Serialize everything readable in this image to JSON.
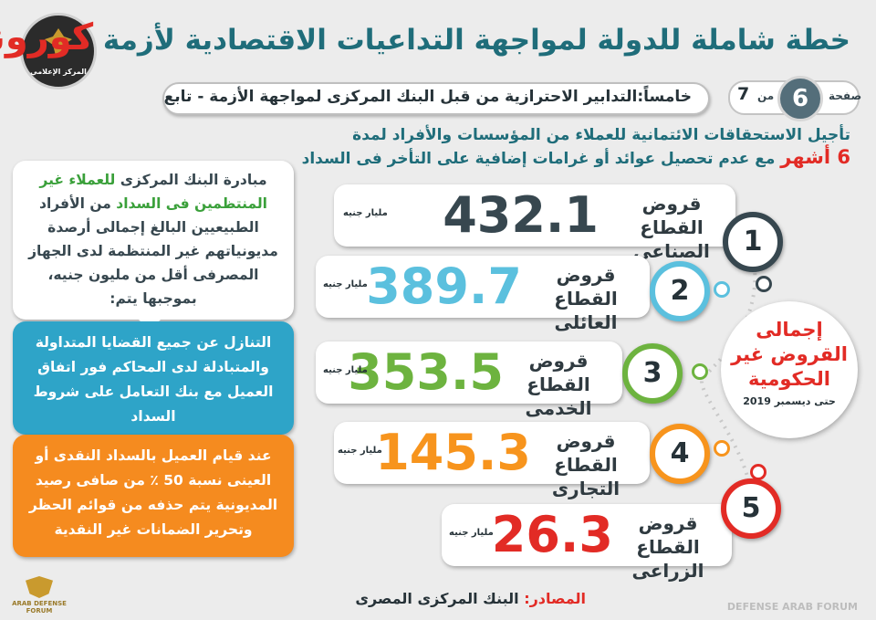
{
  "header": {
    "title_main": "خطة شاملة للدولة لمواجهة التداعيات الاقتصادية لأزمة",
    "title_accent": "كورونا",
    "subtitle": "خامساً:التدابير الاحترازية من قبل البنك المركزى لمواجهة الأزمة - تابع",
    "page_label": "صفحة",
    "page_number": "6",
    "page_of": "من",
    "page_total": "7",
    "logo_text": "المركز الإعلامي"
  },
  "intro": {
    "line1": "تأجيل الاستحقاقات الائتمانية للعملاء من المؤسسات والأفراد لمدة",
    "line2_highlight": "6 أشهر",
    "line2_rest": "مع عدم تحصيل عوائد أو غرامات إضافية على التأخر فى السداد"
  },
  "left_boxes": {
    "box1_part1": "مبادرة البنك المركزى",
    "box1_green": "للعملاء غير المنتظمين فى السداد",
    "box1_part2": "من الأفراد الطبيعيين البالغ إجمالى أرصدة مديونياتهم غير المنتظمة لدى الجهاز المصرفى أقل من مليون جنيه، بموجبها يتم:",
    "box2": "التنازل عن جميع القضايا المتداولة والمتبادلة لدى المحاكم فور اتفاق العميل مع بنك التعامل على شروط السداد",
    "box3": "عند قيام العميل بالسداد النقدى أو العينى نسبة 50 ٪ من صافى رصيد المديونية يتم حذفه من قوائم الحظر وتحرير الضمانات غير النقدية"
  },
  "loans": [
    {
      "num": "1",
      "label": "قروض القطاع الصناعى",
      "value": "432.1",
      "unit": "مليار جنيه",
      "color": "#37474f"
    },
    {
      "num": "2",
      "label": "قروض القطاع العائلى",
      "value": "389.7",
      "unit": "مليار جنيه",
      "color": "#5bc0de"
    },
    {
      "num": "3",
      "label": "قروض القطاع الخدمى",
      "value": "353.5",
      "unit": "مليار جنيه",
      "color": "#6db33f"
    },
    {
      "num": "4",
      "label": "قروض القطاع التجارى",
      "value": "145.3",
      "unit": "مليار جنيه",
      "color": "#f7941d"
    },
    {
      "num": "5",
      "label": "قروض القطاع الزراعى",
      "value": "26.3",
      "unit": "مليار جنيه",
      "color": "#e22b25"
    }
  ],
  "center": {
    "title": "إجمالى القروض غير الحكومية",
    "subtitle": "حتى ديسمبر 2019"
  },
  "source": {
    "label": "المصادر:",
    "value": "البنك المركزى المصرى"
  },
  "watermark": {
    "left": "ARAB DEFENSE FORUM",
    "right": "DEFENSE ARAB FORUM"
  }
}
